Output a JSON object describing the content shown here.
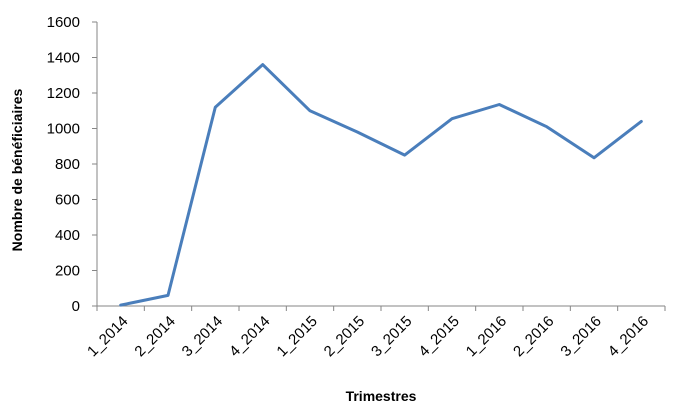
{
  "chart_data": {
    "type": "line",
    "title": "",
    "xlabel": "Trimestres",
    "ylabel": "Nombre de bénéficiaires",
    "categories": [
      "1_2014",
      "2_2014",
      "3_2014",
      "4_2014",
      "1_2015",
      "2_2015",
      "3_2015",
      "4_2015",
      "1_2016",
      "2_2016",
      "3_2016",
      "4_2016"
    ],
    "series": [
      {
        "values": [
          5,
          60,
          1120,
          1360,
          1100,
          980,
          850,
          1055,
          1135,
          1010,
          835,
          1040
        ],
        "color": "#4a7ebb"
      }
    ],
    "yticks": [
      0,
      200,
      400,
      600,
      800,
      1000,
      1200,
      1400,
      1600
    ],
    "ylim": [
      0,
      1600
    ],
    "grid": false,
    "legend": "none"
  }
}
